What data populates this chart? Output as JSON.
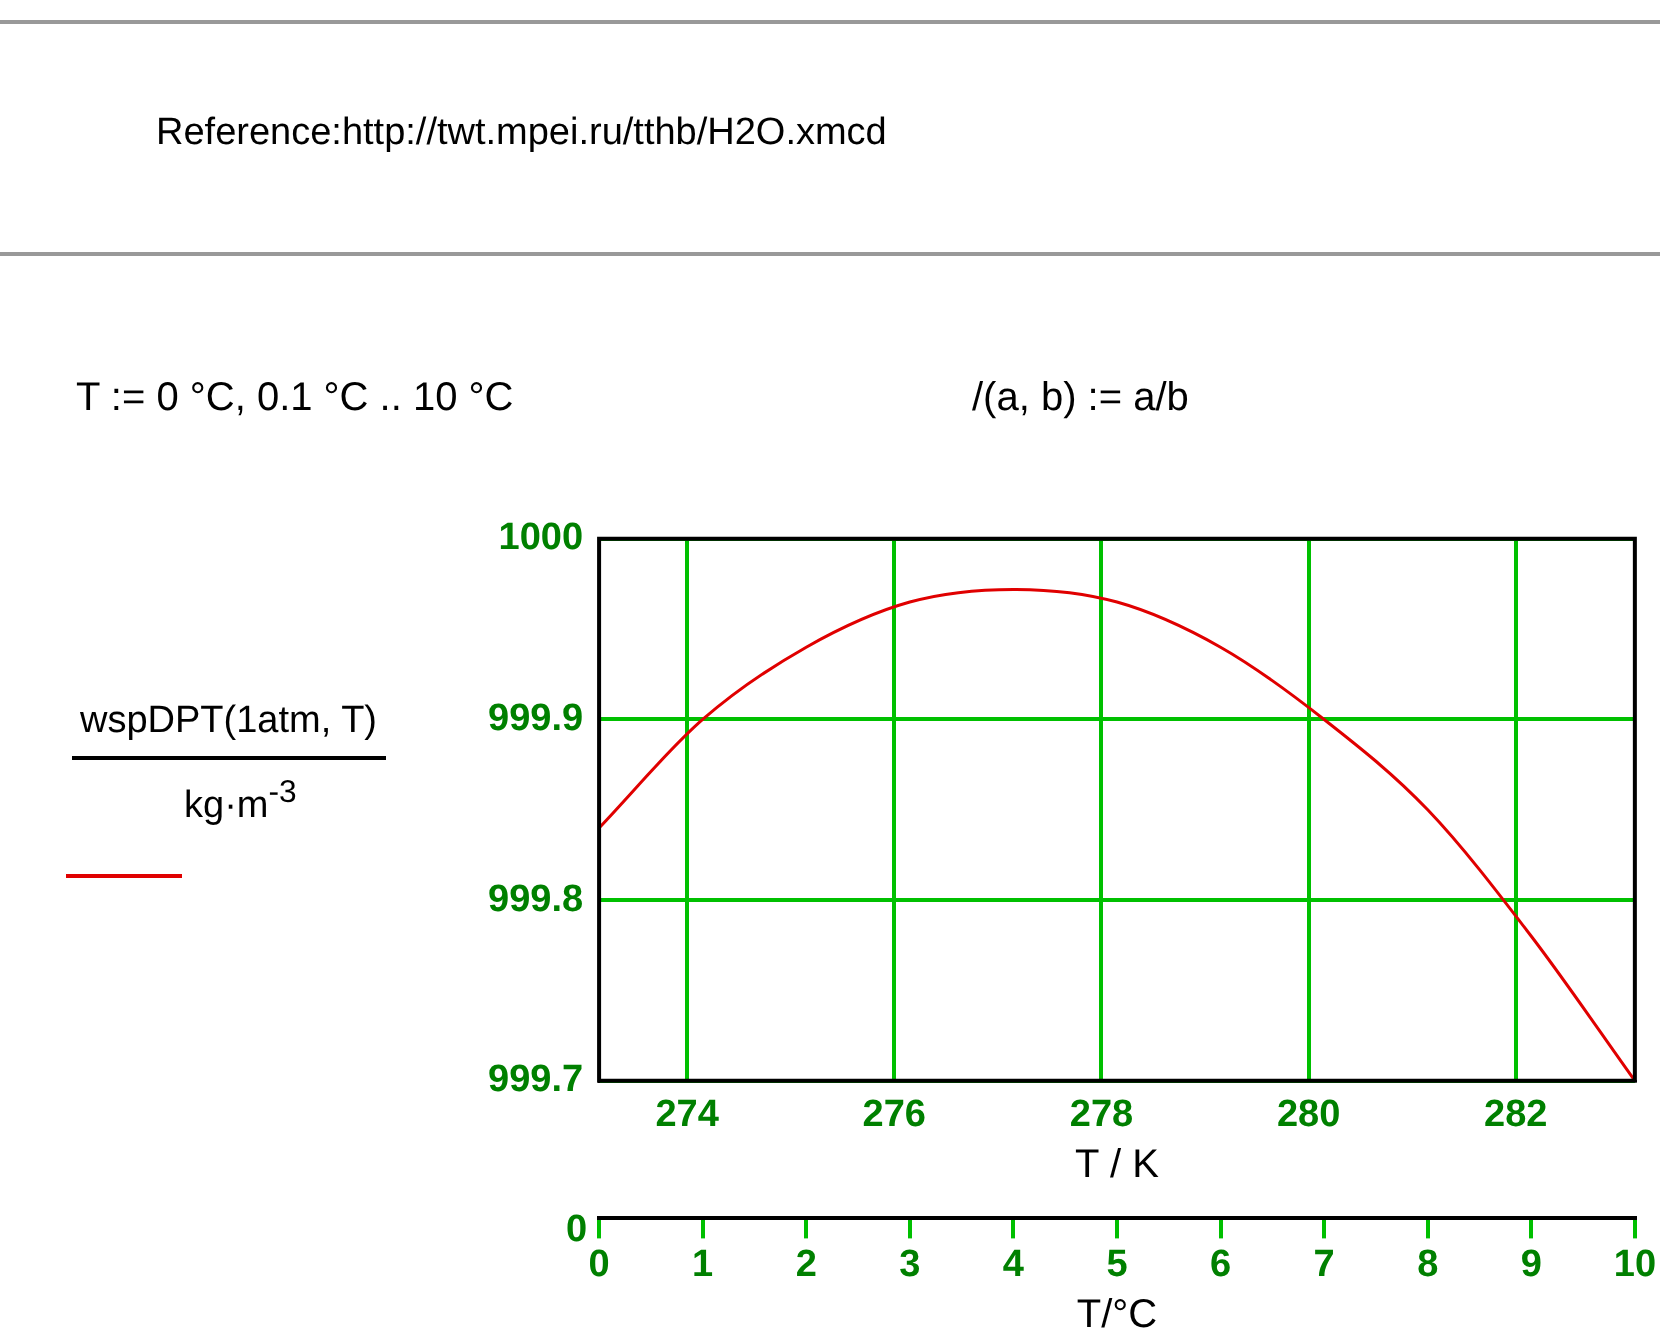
{
  "chart_data": {
    "type": "line",
    "xlabel": "T / K",
    "ylabel": "wspDPT(1atm, T)",
    "x2label": "T/°C",
    "annotations": [
      "Reference:http://twt.mpei.ru/tthb/H2O.xmcd",
      "T := 0 °C, 0.1 °C .. 10 °C",
      "/(a, b) := a/b",
      "0",
      "kg·m$^{-3}$"
    ],
    "x": [
      273.15,
      274.15,
      275.15,
      276.15,
      277.15,
      278.15,
      279.15,
      280.15,
      281.15,
      282.15,
      283.15
    ],
    "series": [
      {
        "color": "#e00000",
        "values": [
          999.84,
          999.9,
          999.94,
          999.965,
          999.972,
          999.965,
          999.94,
          999.9,
          999.85,
          999.78,
          999.7
        ]
      }
    ],
    "xlim": [
      273.15,
      283.15
    ],
    "xticks": [
      274,
      276,
      278,
      280,
      282
    ],
    "ylim": [
      999.7,
      1000
    ],
    "yticks": [
      999.7,
      999.8,
      999.9,
      {
        "value": 1000,
        "label": "1000"
      }
    ],
    "x2lim": [
      0,
      10
    ],
    "x2ticks": [
      0,
      1,
      2,
      3,
      4,
      5,
      6,
      7,
      8,
      9,
      10
    ],
    "grid": true,
    "marker": "none",
    "line_style": "solid"
  }
}
